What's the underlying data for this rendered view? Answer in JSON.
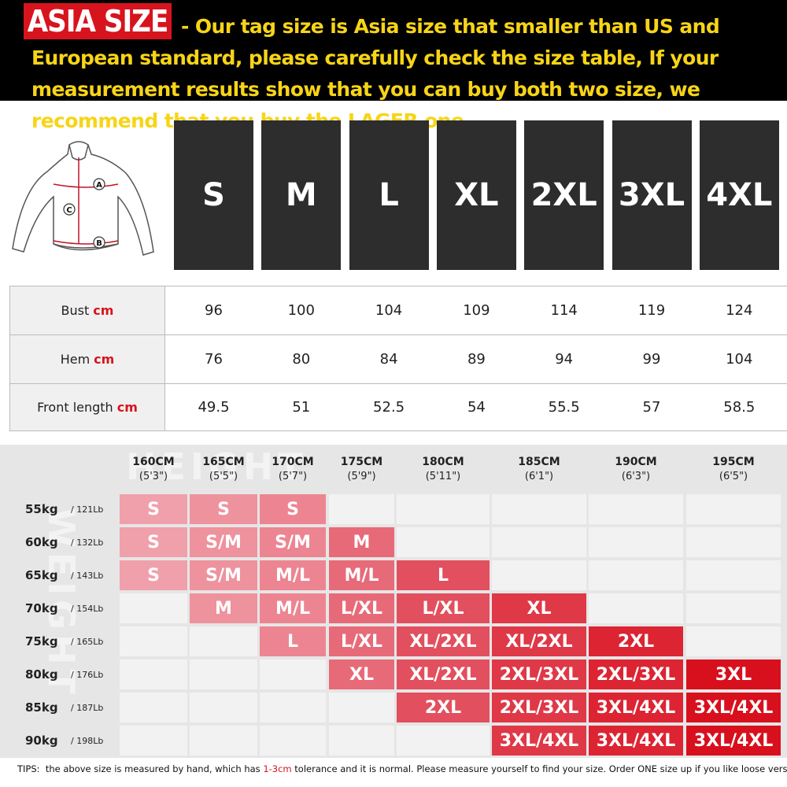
{
  "header": {
    "badge": "ASIA SIZE",
    "text": "- Our tag size is Asia size that smaller than US and European standard, please carefully check the size table, If your measurement results show that you can buy both two size, we recommend that you buy the LAGER one."
  },
  "diagram": {
    "labels": [
      "A",
      "C",
      "B"
    ]
  },
  "sizes": [
    "S",
    "M",
    "L",
    "XL",
    "2XL",
    "3XL",
    "4XL"
  ],
  "measurements": [
    {
      "label": "Bust",
      "unit": "cm",
      "values": [
        96,
        100,
        104,
        109,
        114,
        119,
        124
      ]
    },
    {
      "label": "Hem",
      "unit": "cm",
      "values": [
        76,
        80,
        84,
        89,
        94,
        99,
        104
      ]
    },
    {
      "label": "Front length",
      "unit": "cm",
      "values": [
        49.5,
        51,
        52.5,
        54,
        55.5,
        57,
        58.5
      ]
    }
  ],
  "height_chart": {
    "watermarks": [
      "HEIGHT",
      "WEIGHT"
    ],
    "heights": [
      {
        "cm": "160CM",
        "ft": "(5'3\")"
      },
      {
        "cm": "165CM",
        "ft": "(5'5\")"
      },
      {
        "cm": "170CM",
        "ft": "(5'7\")"
      },
      {
        "cm": "175CM",
        "ft": "(5'9\")"
      },
      {
        "cm": "180CM",
        "ft": "(5'11\")"
      },
      {
        "cm": "185CM",
        "ft": "(6'1\")"
      },
      {
        "cm": "190CM",
        "ft": "(6'3\")"
      },
      {
        "cm": "195CM",
        "ft": "(6'5\")"
      }
    ],
    "rows": [
      {
        "kg": "55kg",
        "lb": "/ 121Lb",
        "cells": [
          "S",
          "S",
          "S",
          null,
          null,
          null,
          null,
          null
        ]
      },
      {
        "kg": "60kg",
        "lb": "/ 132Lb",
        "cells": [
          "S",
          "S/M",
          "S/M",
          "M",
          null,
          null,
          null,
          null
        ]
      },
      {
        "kg": "65kg",
        "lb": "/ 143Lb",
        "cells": [
          "S",
          "S/M",
          "M/L",
          "M/L",
          "L",
          null,
          null,
          null
        ]
      },
      {
        "kg": "70kg",
        "lb": "/ 154Lb",
        "cells": [
          null,
          "M",
          "M/L",
          "L/XL",
          "L/XL",
          "XL",
          null,
          null
        ]
      },
      {
        "kg": "75kg",
        "lb": "/ 165Lb",
        "cells": [
          null,
          null,
          "L",
          "L/XL",
          "XL/2XL",
          "XL/2XL",
          "2XL",
          null
        ]
      },
      {
        "kg": "80kg",
        "lb": "/ 176Lb",
        "cells": [
          null,
          null,
          null,
          "XL",
          "XL/2XL",
          "2XL/3XL",
          "2XL/3XL",
          "3XL"
        ]
      },
      {
        "kg": "85kg",
        "lb": "/ 187Lb",
        "cells": [
          null,
          null,
          null,
          null,
          "2XL",
          "2XL/3XL",
          "3XL/4XL",
          "3XL/4XL"
        ]
      },
      {
        "kg": "90kg",
        "lb": "/ 198Lb",
        "cells": [
          null,
          null,
          null,
          null,
          null,
          "3XL/4XL",
          "3XL/4XL",
          "3XL/4XL"
        ]
      }
    ]
  },
  "tips": [
    "TIPS:  the above size is measured by hand, which has ",
    "1-3cm",
    " tolerance and it is normal. Please measure yourself to find your size. Order ONE size up if you like loose version."
  ]
}
